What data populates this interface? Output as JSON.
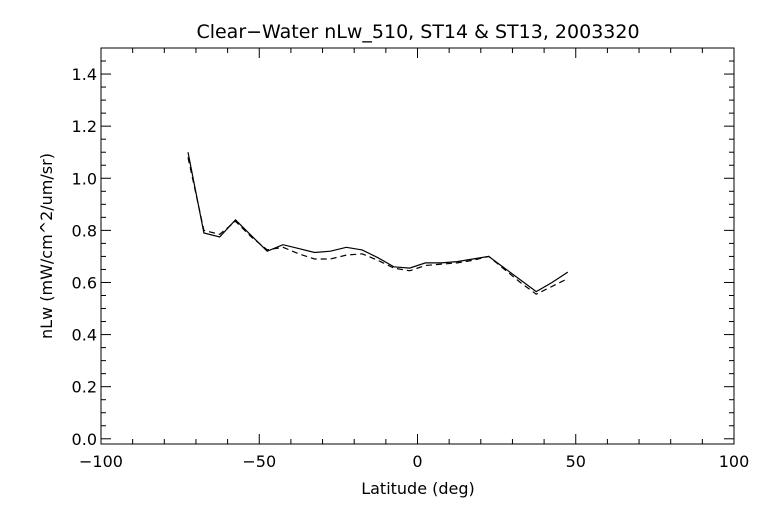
{
  "chart_data": {
    "type": "line",
    "title": "Clear−Water nLw_510, ST14 & ST13, 2003320",
    "xlabel": "Latitude (deg)",
    "ylabel": "nLw (mW/cm^2/um/sr)",
    "xlim": [
      -100,
      100
    ],
    "ylim": [
      -0.02,
      1.5
    ],
    "xticks": [
      -100,
      -50,
      0,
      50,
      100
    ],
    "xtick_labels": [
      "−100",
      "−50",
      "0",
      "50",
      "100"
    ],
    "yticks": [
      0.0,
      0.2,
      0.4,
      0.6,
      0.8,
      1.0,
      1.2,
      1.4
    ],
    "ytick_labels": [
      "0.0",
      "0.2",
      "0.4",
      "0.6",
      "0.8",
      "1.0",
      "1.2",
      "1.4"
    ],
    "grid": false,
    "series": [
      {
        "style": "solid",
        "x": [
          -72.5,
          -67.5,
          -62.5,
          -57.5,
          -52.5,
          -47.5,
          -42.5,
          -37.5,
          -32.5,
          -27.5,
          -22.5,
          -17.5,
          -12.5,
          -7.5,
          -2.5,
          2.5,
          7.5,
          12.5,
          17.5,
          22.5,
          27.5,
          32.5,
          37.5,
          42.5,
          47.5
        ],
        "y": [
          1.1,
          0.79,
          0.775,
          0.84,
          0.78,
          0.72,
          0.745,
          0.73,
          0.715,
          0.72,
          0.735,
          0.725,
          0.695,
          0.66,
          0.655,
          0.675,
          0.675,
          0.68,
          0.69,
          0.7,
          0.655,
          0.61,
          0.565,
          0.6,
          0.64
        ]
      },
      {
        "style": "dashed",
        "x": [
          -72.5,
          -67.5,
          -62.5,
          -57.5,
          -52.5,
          -47.5,
          -42.5,
          -37.5,
          -32.5,
          -27.5,
          -22.5,
          -17.5,
          -12.5,
          -7.5,
          -2.5,
          2.5,
          7.5,
          12.5,
          17.5,
          22.5,
          27.5,
          32.5,
          37.5,
          42.5,
          47.5
        ],
        "y": [
          1.08,
          0.8,
          0.785,
          0.835,
          0.775,
          0.725,
          0.735,
          0.71,
          0.69,
          0.69,
          0.705,
          0.71,
          0.685,
          0.655,
          0.645,
          0.665,
          0.67,
          0.675,
          0.685,
          0.7,
          0.65,
          0.6,
          0.555,
          0.585,
          0.615
        ]
      }
    ]
  }
}
